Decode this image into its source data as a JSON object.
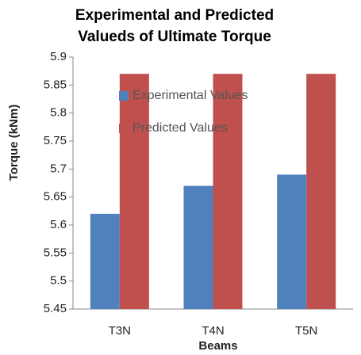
{
  "chart_data": {
    "type": "bar",
    "title": "Experimental and Predicted Valueds of Ultimate Torque",
    "x_label": "Beams",
    "y_label": "Torque (kNm)",
    "categories": [
      "T3N",
      "T4N",
      "T5N"
    ],
    "series": [
      {
        "name": "Experimental Values",
        "color": "#4f81bd",
        "values": [
          5.62,
          5.67,
          5.69
        ]
      },
      {
        "name": "Predicted Values",
        "color": "#c0504d",
        "values": [
          5.87,
          5.87,
          5.87
        ]
      }
    ],
    "ylim": [
      5.45,
      5.9
    ],
    "yticks": [
      5.45,
      5.5,
      5.55,
      5.6,
      5.65,
      5.7,
      5.75,
      5.8,
      5.85,
      5.9
    ],
    "grid": false
  }
}
